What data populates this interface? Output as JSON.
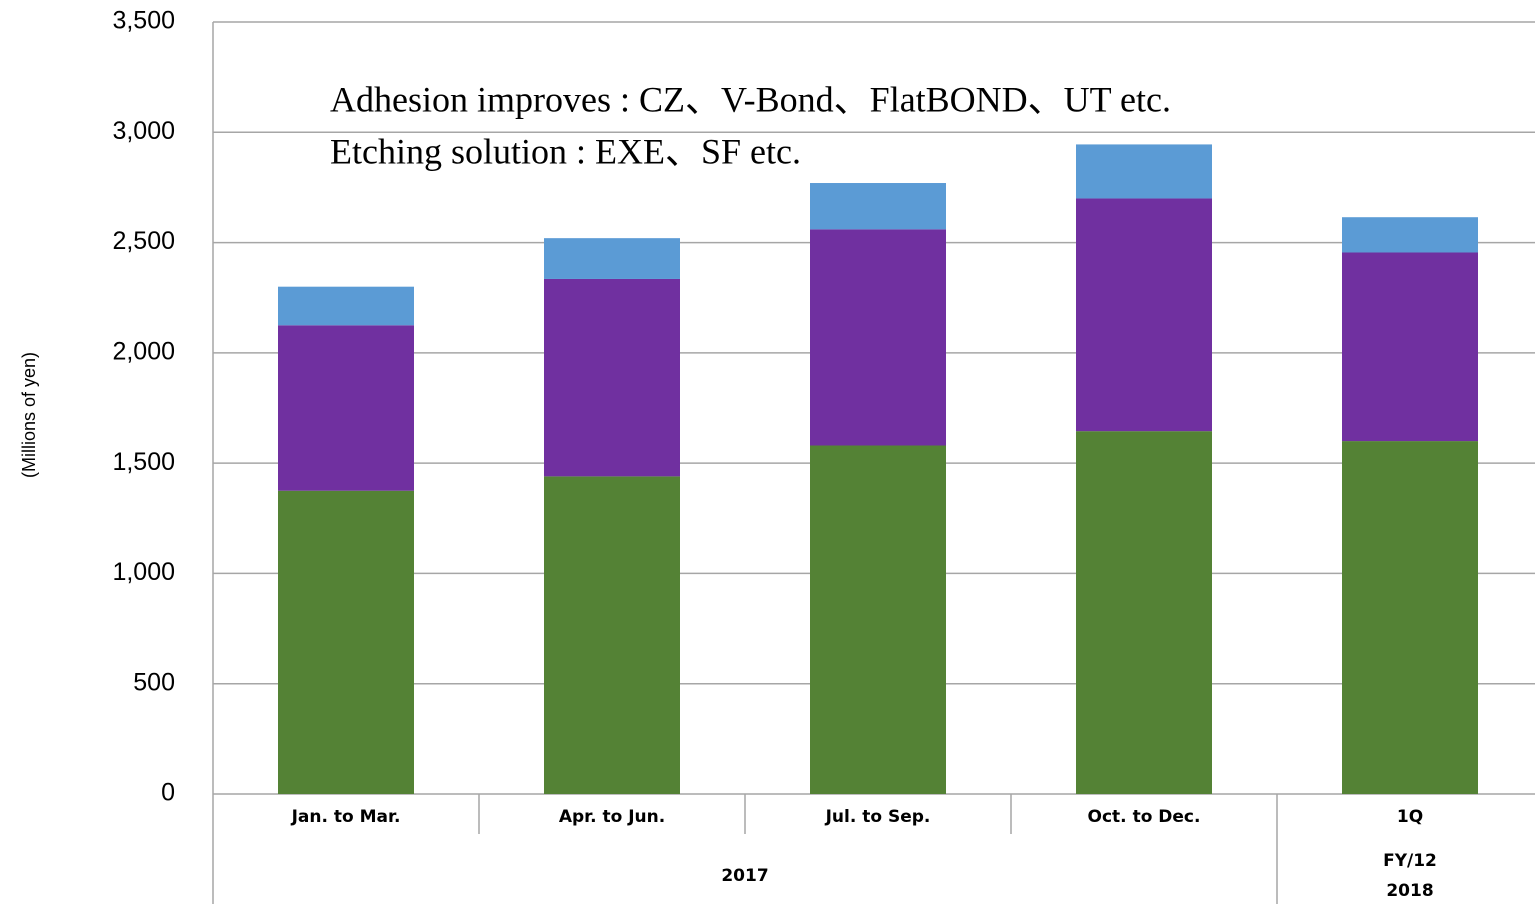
{
  "chart_data": {
    "type": "stacked_bar",
    "y_label": "(Millions of yen)",
    "annotations": [
      "Adhesion improves : CZ、V-Bond、FlatBOND、UT etc.",
      "Etching solution : EXE、SF etc."
    ],
    "groups": [
      {
        "label": [
          "2017"
        ],
        "categories": [
          "Jan. to Mar.",
          "Apr. to Jun.",
          "Jul. to Sep.",
          "Oct. to Dec."
        ]
      },
      {
        "label": [
          "FY/12",
          "2018"
        ],
        "categories": [
          "1Q"
        ]
      }
    ],
    "series": [
      {
        "color": "#548235",
        "values": [
          1375,
          1440,
          1580,
          1645,
          1600
        ]
      },
      {
        "color": "#7030a0",
        "values": [
          750,
          895,
          980,
          1055,
          855
        ]
      },
      {
        "color": "#5b9bd5",
        "values": [
          175,
          185,
          210,
          245,
          160
        ]
      }
    ],
    "ylim": [
      0,
      3500
    ],
    "yticks": [
      0,
      {
        "value": 500,
        "label": "500"
      },
      {
        "value": 1000,
        "label": "1,000"
      },
      {
        "value": 1500,
        "label": "1,500"
      },
      {
        "value": 2000,
        "label": "2,000"
      },
      {
        "value": 2500,
        "label": "2,500"
      },
      {
        "value": 3000,
        "label": "3,000"
      },
      {
        "value": 3500,
        "label": "3,500"
      }
    ],
    "grid": true
  }
}
